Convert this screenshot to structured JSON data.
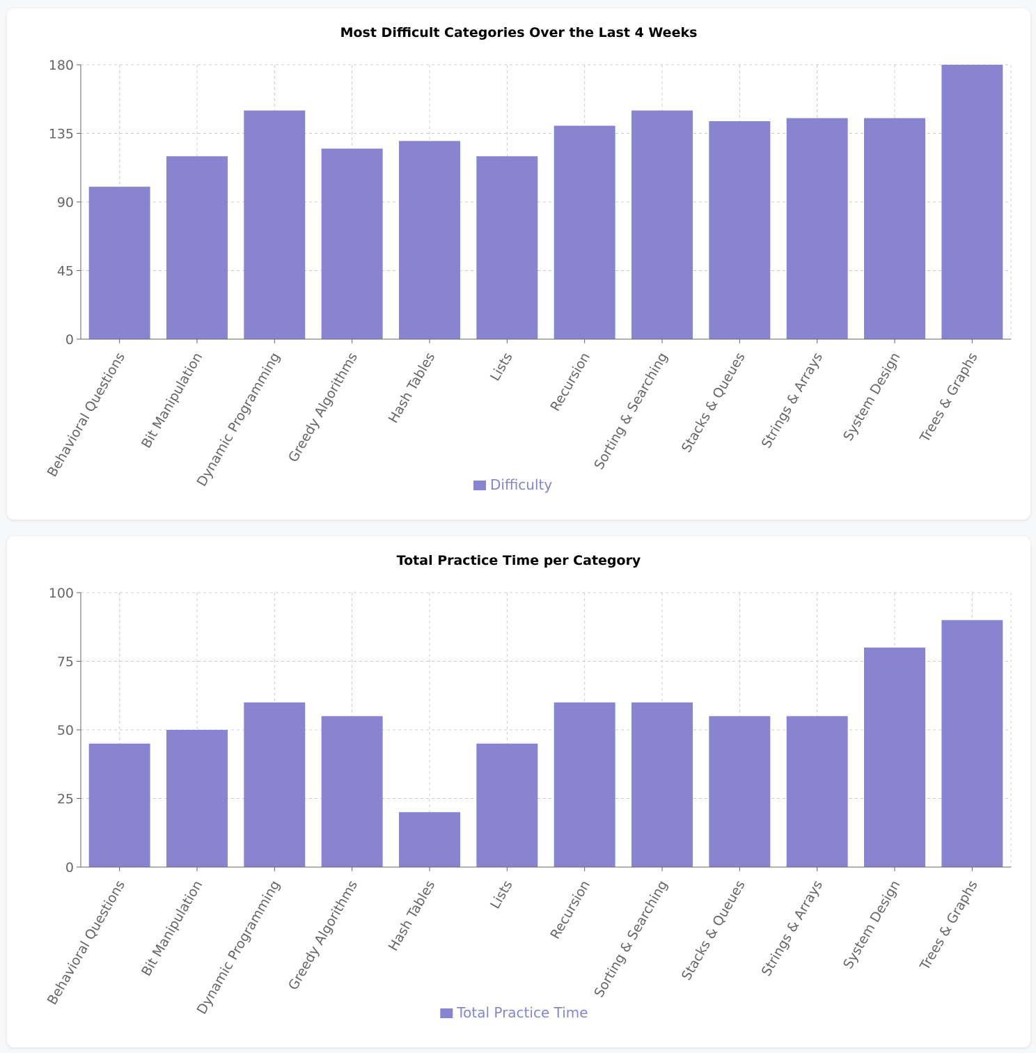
{
  "colors": {
    "bar": "#8884d2",
    "grid": "#cccccc",
    "axis": "#666666",
    "text": "#666666"
  },
  "chart_data": [
    {
      "type": "bar",
      "title": "Most Difficult Categories Over the Last 4 Weeks",
      "categories": [
        "Behavioral Questions",
        "Bit Manipulation",
        "Dynamic Programming",
        "Greedy Algorithms",
        "Hash Tables",
        "Lists",
        "Recursion",
        "Sorting & Searching",
        "Stacks & Queues",
        "Strings & Arrays",
        "System Design",
        "Trees & Graphs"
      ],
      "series": [
        {
          "name": "Difficulty",
          "values": [
            100,
            120,
            150,
            125,
            130,
            120,
            140,
            150,
            143,
            145,
            145,
            180
          ]
        }
      ],
      "ylim": [
        0,
        180
      ],
      "yticks": [
        0,
        45,
        90,
        135,
        180
      ],
      "grid": true,
      "legend": "bottom-center"
    },
    {
      "type": "bar",
      "title": "Total Practice Time per Category",
      "categories": [
        "Behavioral Questions",
        "Bit Manipulation",
        "Dynamic Programming",
        "Greedy Algorithms",
        "Hash Tables",
        "Lists",
        "Recursion",
        "Sorting & Searching",
        "Stacks & Queues",
        "Strings & Arrays",
        "System Design",
        "Trees & Graphs"
      ],
      "series": [
        {
          "name": "Total Practice Time",
          "values": [
            45,
            50,
            60,
            55,
            20,
            45,
            60,
            60,
            55,
            55,
            80,
            90
          ]
        }
      ],
      "ylim": [
        0,
        100
      ],
      "yticks": [
        0,
        25,
        50,
        75,
        100
      ],
      "grid": true,
      "legend": "bottom-center"
    }
  ]
}
